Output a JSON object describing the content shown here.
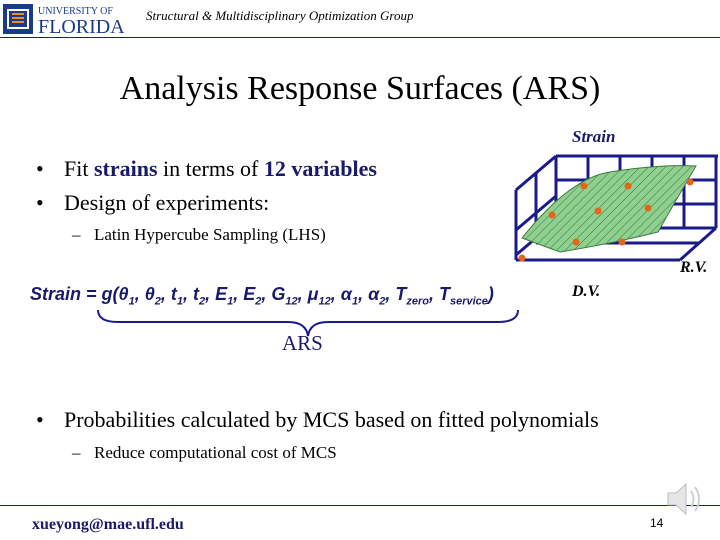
{
  "header": {
    "logo_text_line1": "UNIVERSITY OF",
    "logo_text_line2": "FLORIDA",
    "group_title": "Structural & Multidisciplinary Optimization Group"
  },
  "slide": {
    "title": "Analysis Response Surfaces (ARS)",
    "bullets": [
      {
        "prefix": "Fit ",
        "hl1": "strains",
        "mid": " in terms of ",
        "hl2": "12 variables"
      },
      {
        "text": "Design of experiments:"
      }
    ],
    "sub_bullet_1": "Latin Hypercube Sampling (LHS)",
    "bullet_3": "Probabilities calculated by MCS based on fitted polynomials",
    "sub_bullet_2": "Reduce computational cost of MCS",
    "bullet_glyph": "•",
    "dash_glyph": "–"
  },
  "equation": {
    "lhs": "Strain = g(",
    "terms": [
      "θ",
      "1",
      ", θ",
      "2",
      ", t",
      "1",
      ", t",
      "2",
      ", E",
      "1",
      ", E",
      "2",
      ", G",
      "12",
      ", μ",
      "12",
      ", α",
      "1",
      ", α",
      "2",
      ", T",
      "zero",
      ", T",
      "service",
      ")"
    ],
    "brace_label": "ARS"
  },
  "figure": {
    "z_label": "Strain",
    "x_label": "R.V.",
    "y_label": "D.V.",
    "surface_color": "#7fbf7f",
    "point_color": "#e8641a",
    "grid_color": "#1a1a8a"
  },
  "footer": {
    "email": "xueyong@mae.ufl.edu",
    "page_number": "14"
  }
}
